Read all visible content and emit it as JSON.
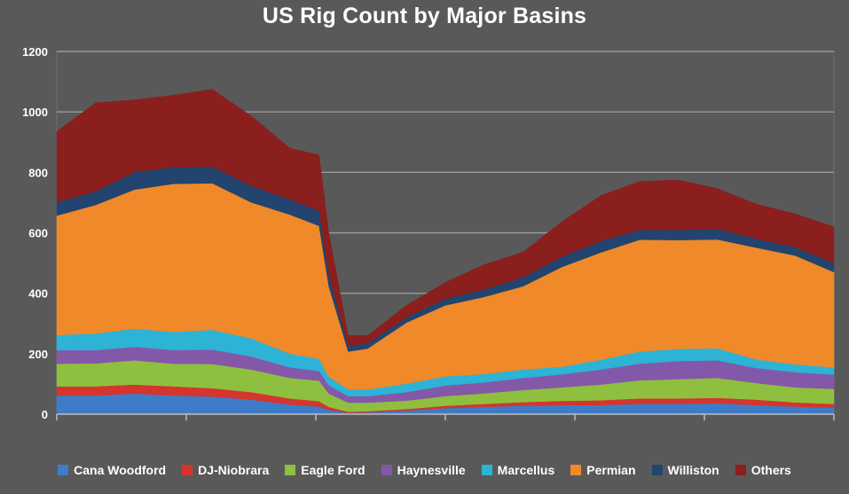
{
  "chart_data": {
    "type": "area",
    "stacked": true,
    "title": "US Rig Count by Major Basins",
    "xlabel": "",
    "ylabel": "",
    "ylim": [
      0,
      1200
    ],
    "yticks": [
      0,
      200,
      400,
      600,
      800,
      1000,
      1200
    ],
    "grid": true,
    "legend_position": "bottom",
    "series_count": 8,
    "x": [
      0,
      2,
      4,
      6,
      8,
      10,
      12,
      13.5,
      14,
      15,
      16,
      18,
      20,
      22,
      24,
      26,
      28,
      30,
      32,
      34,
      36,
      38,
      40
    ],
    "series": [
      {
        "name": "Cana Woodford",
        "color": "#3e7cc8",
        "values": [
          62,
          62,
          68,
          62,
          58,
          48,
          32,
          25,
          14,
          4,
          6,
          12,
          20,
          24,
          28,
          30,
          30,
          34,
          34,
          36,
          30,
          25,
          22
        ]
      },
      {
        "name": "DJ-Niobrara",
        "color": "#d4352e",
        "values": [
          30,
          30,
          30,
          30,
          28,
          25,
          20,
          18,
          10,
          4,
          4,
          5,
          8,
          10,
          12,
          14,
          16,
          18,
          18,
          18,
          18,
          14,
          12
        ]
      },
      {
        "name": "Eagle Ford",
        "color": "#8fbf3f",
        "values": [
          75,
          76,
          80,
          75,
          80,
          75,
          68,
          68,
          44,
          30,
          28,
          28,
          32,
          35,
          40,
          45,
          52,
          60,
          64,
          66,
          55,
          50,
          50
        ]
      },
      {
        "name": "Haynesville",
        "color": "#8458a8",
        "values": [
          45,
          44,
          45,
          45,
          48,
          43,
          35,
          32,
          28,
          22,
          22,
          28,
          35,
          36,
          40,
          43,
          50,
          55,
          60,
          58,
          50,
          50,
          47
        ]
      },
      {
        "name": "Marcellus",
        "color": "#2db3d6",
        "values": [
          50,
          55,
          60,
          60,
          65,
          60,
          45,
          40,
          28,
          22,
          22,
          28,
          30,
          28,
          28,
          25,
          32,
          40,
          40,
          40,
          28,
          26,
          24
        ]
      },
      {
        "name": "Permian",
        "color": "#f0892a",
        "values": [
          395,
          425,
          460,
          490,
          485,
          450,
          460,
          440,
          300,
          125,
          135,
          202,
          235,
          255,
          275,
          330,
          355,
          370,
          360,
          360,
          370,
          360,
          315
        ]
      },
      {
        "name": "Williston",
        "color": "#22446e",
        "values": [
          45,
          45,
          58,
          55,
          55,
          55,
          50,
          50,
          40,
          20,
          17,
          17,
          22,
          25,
          30,
          34,
          38,
          33,
          33,
          35,
          30,
          28,
          30
        ]
      },
      {
        "name": "Others",
        "color": "#8b1f1e",
        "values": [
          233,
          293,
          239,
          238,
          256,
          231,
          170,
          184,
          136,
          33,
          26,
          40,
          54,
          82,
          83,
          116,
          150,
          160,
          166,
          133,
          114,
          110,
          120
        ]
      }
    ]
  }
}
